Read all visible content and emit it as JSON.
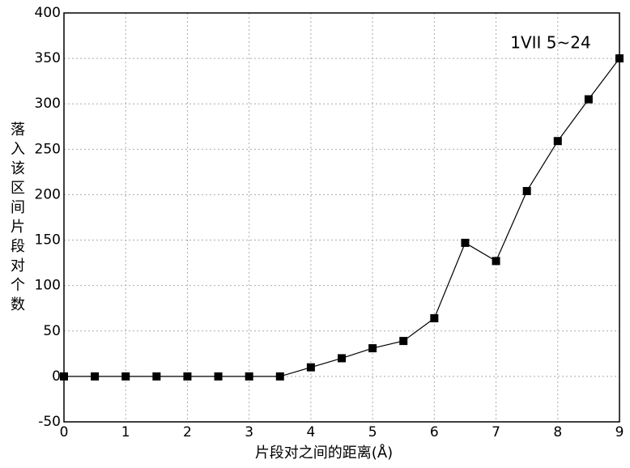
{
  "chart_data": {
    "type": "line",
    "x_label": "片段对之间的距离(Å)",
    "y_label": "落入该区间片段对个数",
    "annotation": "1VII 5~24",
    "x": [
      0,
      0.5,
      1,
      1.5,
      2,
      2.5,
      3,
      3.5,
      4,
      4.5,
      5,
      5.5,
      6,
      6.5,
      7,
      7.5,
      8,
      8.5,
      9
    ],
    "series": [
      {
        "color": "#000000",
        "values": [
          0,
          0,
          0,
          0,
          0,
          0,
          0,
          0,
          10,
          20,
          31,
          39,
          64,
          147,
          127,
          204,
          259,
          305,
          350
        ]
      }
    ],
    "xlim": [
      0,
      9
    ],
    "xticks": [
      0,
      1,
      2,
      3,
      4,
      5,
      6,
      7,
      8,
      9
    ],
    "ylim": [
      -50,
      400
    ],
    "yticks": [
      -50,
      0,
      50,
      100,
      150,
      200,
      250,
      300,
      350,
      400
    ],
    "grid": true
  }
}
